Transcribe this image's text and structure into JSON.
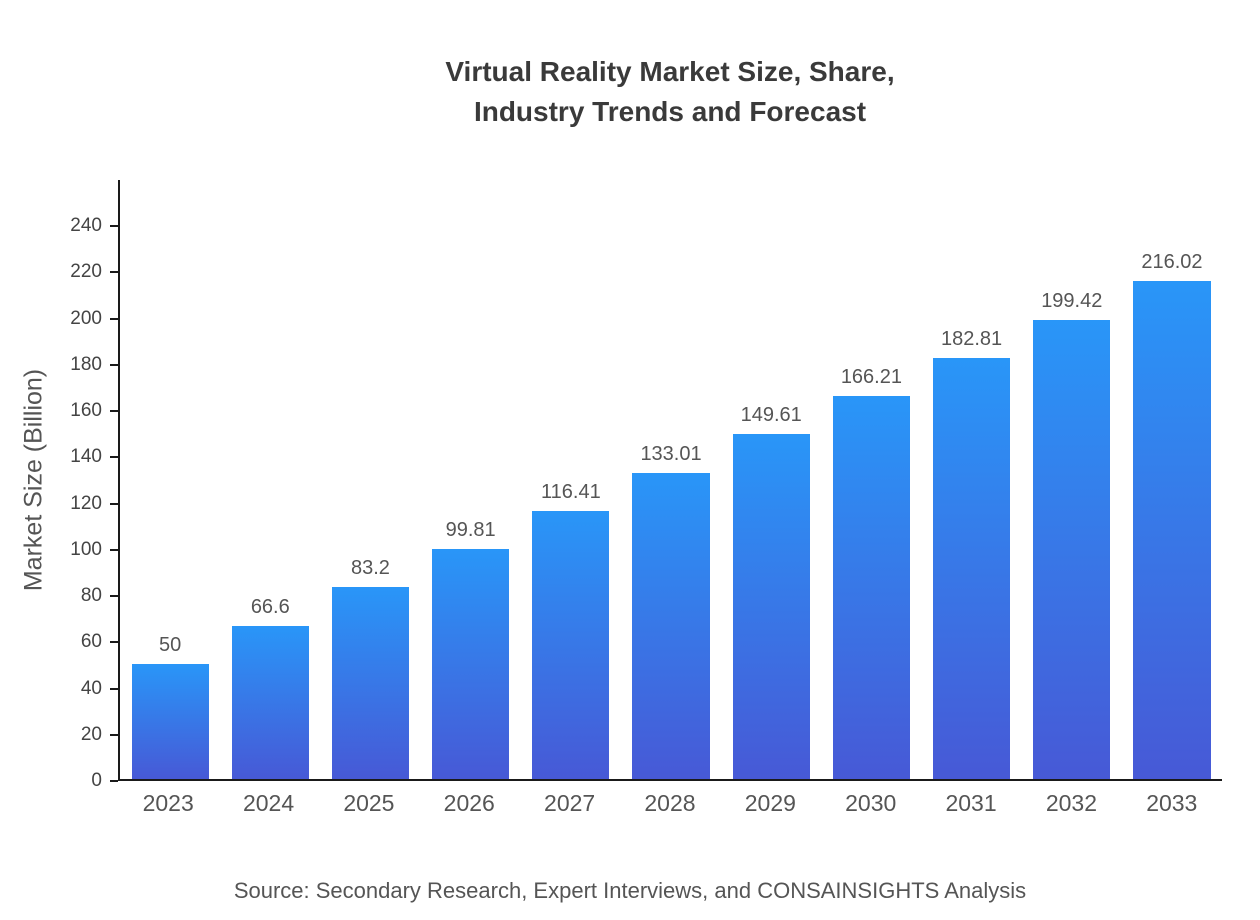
{
  "title": {
    "line1": "Virtual Reality Market Size, Share,",
    "line2": "Industry Trends and Forecast"
  },
  "source": "Source: Secondary Research, Expert Interviews, and CONSAINSIGHTS Analysis",
  "colors": {
    "bar_gradient_top": "#2996f8",
    "bar_gradient_bottom": "#4759d6",
    "axis_line": "#1a1a1a",
    "title_text": "#3a3a3a",
    "axis_text": "#555555"
  },
  "chart_data": {
    "type": "bar",
    "title": "Virtual Reality Market Size, Share, Industry Trends and Forecast",
    "xlabel": "",
    "ylabel": "Market Size (Billion)",
    "categories": [
      "2023",
      "2024",
      "2025",
      "2026",
      "2027",
      "2028",
      "2029",
      "2030",
      "2031",
      "2032",
      "2033"
    ],
    "values": [
      50,
      66.6,
      83.2,
      99.81,
      116.41,
      133.01,
      149.61,
      166.21,
      182.81,
      199.42,
      216.02
    ],
    "labels": [
      "50",
      "66.6",
      "83.2",
      "99.81",
      "116.41",
      "133.01",
      "149.61",
      "166.21",
      "182.81",
      "199.42",
      "216.02"
    ],
    "ylim": [
      0,
      260
    ],
    "yticks": [
      0,
      20,
      40,
      60,
      80,
      100,
      120,
      140,
      160,
      180,
      200,
      220,
      240
    ],
    "grid": false,
    "legend": "none"
  }
}
